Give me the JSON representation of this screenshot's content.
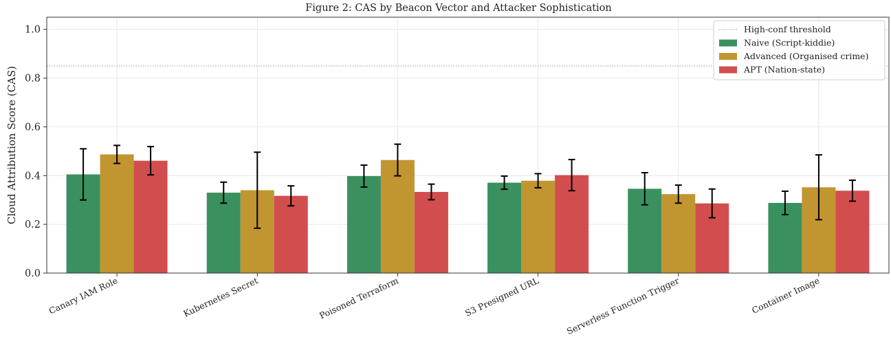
{
  "chart_data": {
    "type": "bar",
    "title": "Figure 2: CAS by Beacon Vector and Attacker Sophistication",
    "xlabel": "",
    "ylabel": "Cloud Attribution Score (CAS)",
    "ylim": [
      0.0,
      1.05
    ],
    "yticks": [
      "0.0",
      "0.2",
      "0.4",
      "0.6",
      "0.8",
      "1.0"
    ],
    "grid": true,
    "legend_position": "top-right",
    "categories": [
      "Canary IAM Role",
      "Kubernetes Secret",
      "Poisoned Terraform",
      "S3 Presigned URL",
      "Serverless Function Trigger",
      "Container Image"
    ],
    "series": [
      {
        "name": "Naive (Script-kiddie)",
        "color": "#3a915f",
        "values": [
          0.405,
          0.33,
          0.398,
          0.371,
          0.346,
          0.288
        ],
        "errors": [
          0.105,
          0.043,
          0.045,
          0.027,
          0.066,
          0.048
        ]
      },
      {
        "name": "Advanced (Organised crime)",
        "color": "#c19530",
        "values": [
          0.487,
          0.34,
          0.464,
          0.379,
          0.324,
          0.352
        ],
        "errors": [
          0.037,
          0.156,
          0.065,
          0.029,
          0.037,
          0.133
        ]
      },
      {
        "name": "APT (Nation-state)",
        "color": "#d24e4e",
        "values": [
          0.461,
          0.317,
          0.333,
          0.402,
          0.286,
          0.338
        ],
        "errors": [
          0.058,
          0.041,
          0.032,
          0.064,
          0.059,
          0.043
        ]
      }
    ],
    "threshold": {
      "name": "High-conf threshold",
      "value": 0.85,
      "color": "#999999"
    }
  }
}
